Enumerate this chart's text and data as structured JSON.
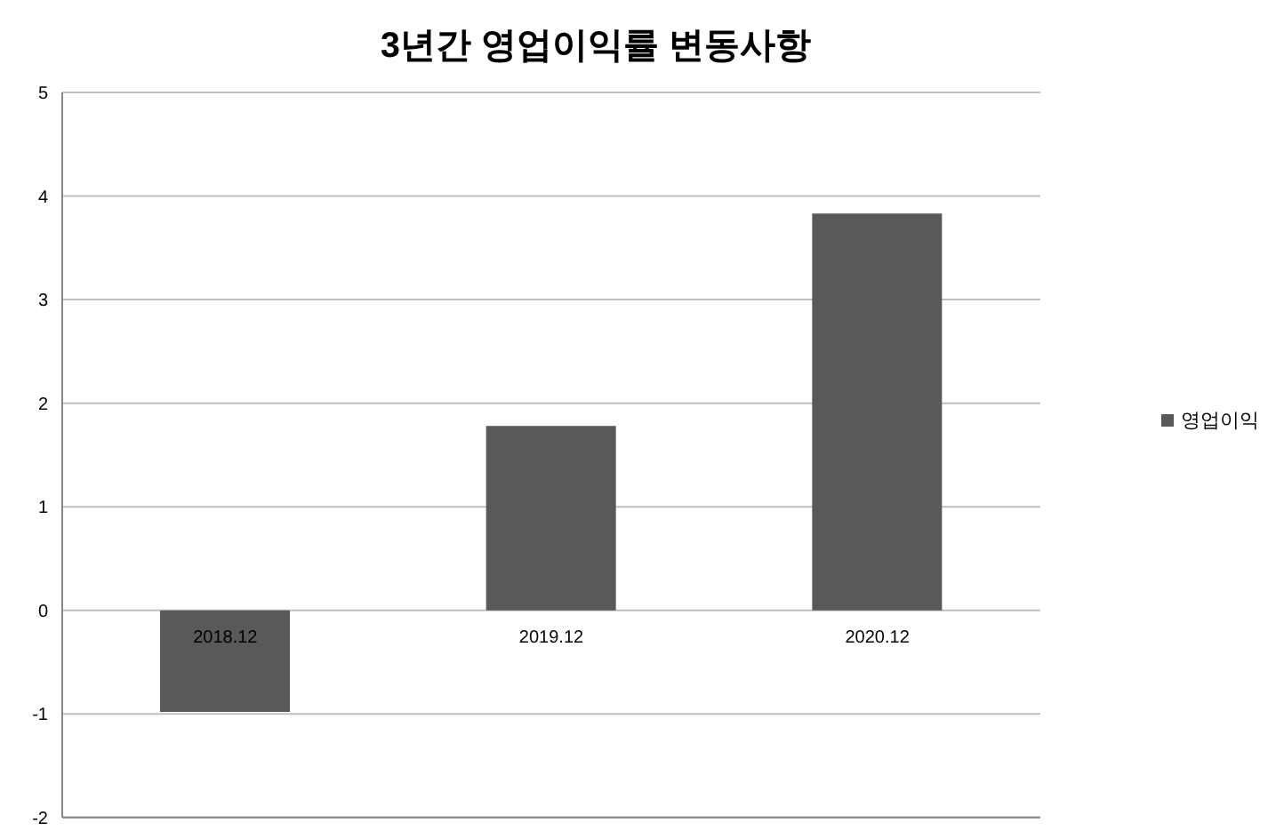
{
  "chart_data": {
    "type": "bar",
    "title": "3년간 영업이익률 변동사항",
    "categories": [
      "2018.12",
      "2019.12",
      "2020.12"
    ],
    "series": [
      {
        "name": "영업이익",
        "color": "#595959",
        "values": [
          -0.98,
          1.78,
          3.83
        ]
      }
    ],
    "ylim": [
      -2,
      5
    ],
    "yticks": [
      -2,
      -1,
      0,
      1,
      2,
      3,
      4,
      5
    ],
    "grid": "y",
    "legend": "right"
  }
}
